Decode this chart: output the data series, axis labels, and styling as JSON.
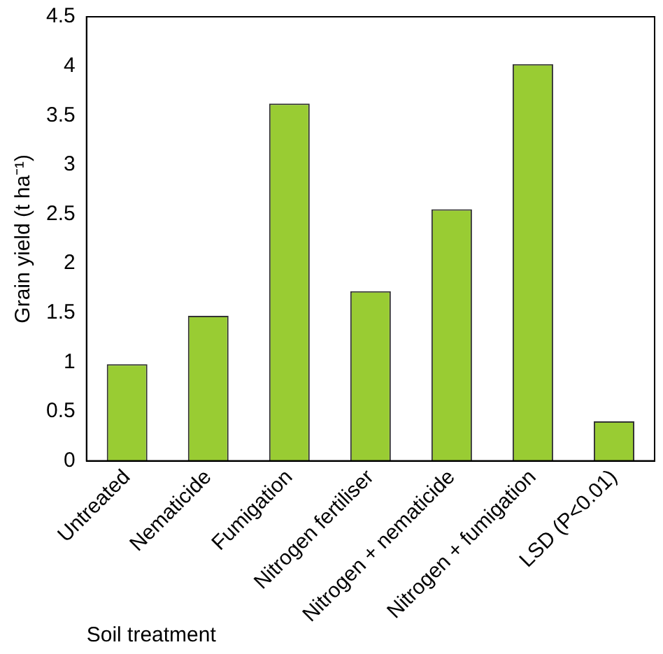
{
  "chart_data": {
    "type": "bar",
    "xlabel": "Soil treatment",
    "ylabel": "Grain yield (t ha⁻¹)",
    "categories": [
      "Untreated",
      "Nematicide",
      "Fumigation",
      "Nitrogen fertiliser",
      "Nitrogen + nematicide",
      "Nitrogen + fumigation",
      "LSD (P<0.01)"
    ],
    "values": [
      0.98,
      1.47,
      3.62,
      1.72,
      2.55,
      4.02,
      0.4
    ],
    "color": "#99cc33",
    "ylim": [
      0,
      4.5
    ],
    "yticks": [
      0,
      0.5,
      1,
      1.5,
      2,
      2.5,
      3,
      3.5,
      4,
      4.5
    ],
    "grid": false,
    "legend": false
  }
}
